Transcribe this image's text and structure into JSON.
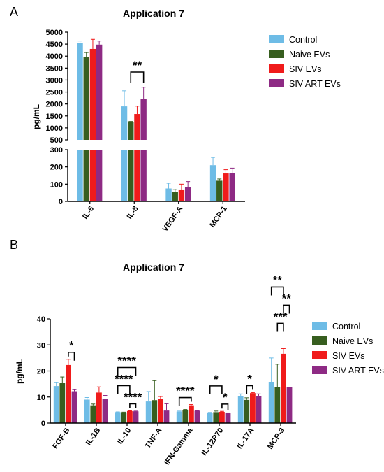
{
  "panels": [
    {
      "letter": "A"
    },
    {
      "letter": "B"
    }
  ],
  "colors": {
    "Control": "#6EBCE6",
    "Naive EVs": "#375E1F",
    "SIV EVs": "#F01B1B",
    "SIV ART EVs": "#8E2A84"
  },
  "chart_data": [
    {
      "type": "bar",
      "title": "Application 7",
      "ylabel": "pg/mL",
      "xlabel": "",
      "axis_break": {
        "lower_range": [
          0,
          300
        ],
        "upper_range": [
          500,
          5000
        ]
      },
      "ylim": [
        0,
        5000
      ],
      "lower_ticks": [
        0,
        100,
        200,
        300
      ],
      "upper_ticks": [
        500,
        1000,
        1500,
        2000,
        2500,
        3000,
        3500,
        4000,
        4500,
        5000
      ],
      "grid": false,
      "legend_position": "top-right",
      "categories": [
        "IL-6",
        "IL-8",
        "VEGF-A",
        "MCP-1"
      ],
      "series": [
        {
          "name": "Control",
          "values": [
            4550,
            1900,
            75,
            210
          ],
          "errors": [
            80,
            650,
            30,
            45
          ]
        },
        {
          "name": "Naive EVs",
          "values": [
            3950,
            1250,
            55,
            120
          ],
          "errors": [
            200,
            20,
            15,
            10
          ]
        },
        {
          "name": "SIV EVs",
          "values": [
            4300,
            1580,
            65,
            162
          ],
          "errors": [
            400,
            330,
            35,
            22
          ]
        },
        {
          "name": "SIV ART EVs",
          "values": [
            4480,
            2200,
            85,
            163
          ],
          "errors": [
            150,
            500,
            30,
            30
          ]
        }
      ],
      "annotations": [
        {
          "category": 1,
          "from": "Naive EVs",
          "to": "SIV ART EVs",
          "label": "**",
          "level": 0
        }
      ]
    },
    {
      "type": "bar",
      "title": "Application 7",
      "ylabel": "pg/mL",
      "xlabel": "",
      "ylim": [
        0,
        40
      ],
      "ticks": [
        0,
        10,
        20,
        30,
        40
      ],
      "grid": false,
      "legend_position": "right",
      "categories": [
        "FGF-B",
        "IL-1B",
        "IL-10",
        "TNF-A",
        "IFN-Gamma",
        "IL-12P70",
        "IL-17A",
        "MCP-3"
      ],
      "series": [
        {
          "name": "Control",
          "values": [
            14.2,
            9.0,
            4.2,
            8.3,
            4.4,
            3.9,
            10.2,
            15.8
          ],
          "errors": [
            1.3,
            0.8,
            0.1,
            3.8,
            0.2,
            0.2,
            1.0,
            9.2
          ]
        },
        {
          "name": "Naive EVs",
          "values": [
            15.3,
            6.8,
            4.1,
            8.8,
            5.1,
            4.2,
            8.9,
            13.8
          ],
          "errors": [
            2.4,
            0.5,
            0.1,
            7.5,
            0.1,
            0.4,
            0.8,
            8.8
          ]
        },
        {
          "name": "SIV EVs",
          "values": [
            22.3,
            11.7,
            4.6,
            9.3,
            6.8,
            4.3,
            11.5,
            26.6
          ],
          "errors": [
            2.2,
            2.2,
            0.1,
            0.9,
            0.3,
            0.2,
            0.2,
            2.0
          ]
        },
        {
          "name": "SIV ART EVs",
          "values": [
            12.2,
            9.3,
            4.5,
            4.8,
            4.7,
            3.8,
            10.3,
            13.9
          ],
          "errors": [
            0.6,
            1.3,
            0.1,
            2.6,
            0.1,
            0.1,
            0.9,
            0.0
          ]
        }
      ],
      "annotations": [
        {
          "category": 0,
          "from": "SIV EVs",
          "to": "SIV ART EVs",
          "label": "*",
          "level": 0
        },
        {
          "category": 2,
          "from": "Control",
          "to": "SIV ART EVs",
          "label": "****",
          "level": 2
        },
        {
          "category": 2,
          "from": "Control",
          "to": "SIV EVs",
          "label": "****",
          "level": 1
        },
        {
          "category": 2,
          "from": "SIV EVs",
          "to": "SIV ART EVs",
          "label": "****",
          "level": 0
        },
        {
          "category": 4,
          "from": "Control",
          "to": "SIV EVs",
          "label": "****",
          "level": 0
        },
        {
          "category": 5,
          "from": "Control",
          "to": "SIV EVs",
          "label": "*",
          "level": 1
        },
        {
          "category": 5,
          "from": "SIV EVs",
          "to": "SIV ART EVs",
          "label": "*",
          "level": 0
        },
        {
          "category": 6,
          "from": "Naive EVs",
          "to": "SIV EVs",
          "label": "*",
          "level": 0
        },
        {
          "category": 7,
          "from": "Control",
          "to": "SIV EVs",
          "label": "**",
          "level": 3
        },
        {
          "category": 7,
          "from": "SIV EVs",
          "to": "SIV ART EVs",
          "label": "**",
          "level": 2
        },
        {
          "category": 7,
          "from": "Naive EVs",
          "to": "SIV EVs",
          "label": "***",
          "level": 1
        }
      ]
    }
  ]
}
